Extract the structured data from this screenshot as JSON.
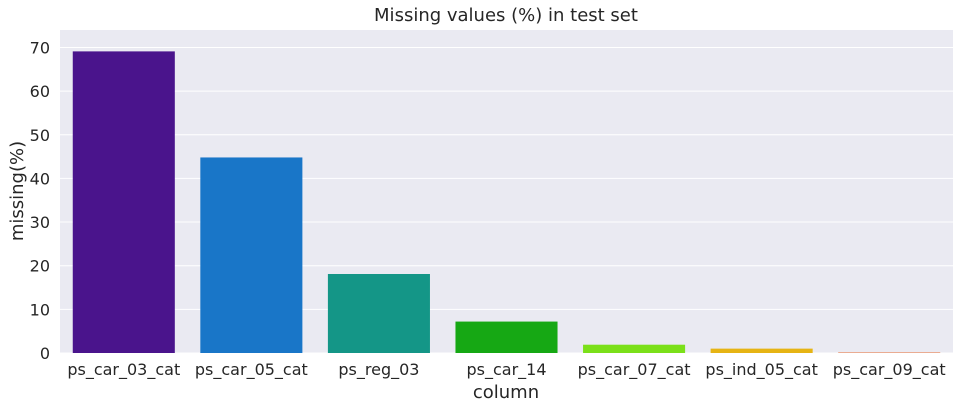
{
  "chart_data": {
    "type": "bar",
    "title": "Missing values (%) in test set",
    "xlabel": "column",
    "ylabel": "missing(%)",
    "categories": [
      "ps_car_03_cat",
      "ps_car_05_cat",
      "ps_reg_03",
      "ps_car_14",
      "ps_car_07_cat",
      "ps_ind_05_cat",
      "ps_car_09_cat"
    ],
    "values": [
      69.1,
      44.8,
      18.1,
      7.2,
      1.9,
      1.0,
      0.1
    ],
    "ylim": [
      0,
      74
    ],
    "yticks": [
      "0",
      "10",
      "20",
      "30",
      "40",
      "50",
      "60",
      "70"
    ],
    "grid": true,
    "background_color": "#eaeaf2",
    "colors": [
      "#4a148c",
      "#1976c8",
      "#149687",
      "#16a814",
      "#7be019",
      "#e6b414",
      "#e65a14"
    ]
  }
}
